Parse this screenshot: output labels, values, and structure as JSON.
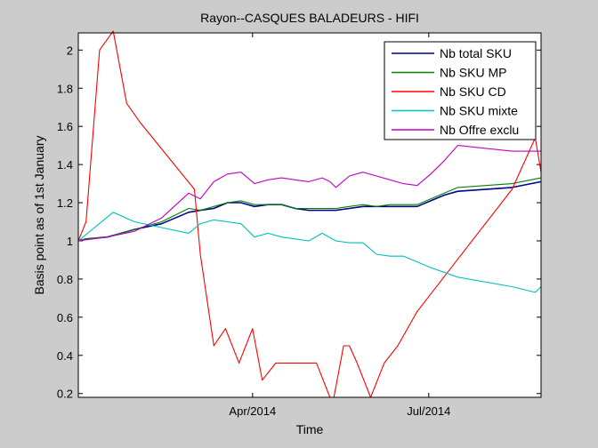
{
  "chart_data": {
    "type": "line",
    "title": "Rayon--CASQUES BALADEURS - HIFI",
    "xlabel": "Time",
    "ylabel": "Basis point as of 1st January",
    "ylim": [
      0.18,
      2.09
    ],
    "xlim": [
      "2014-01-01",
      "2014-08-28"
    ],
    "grid": false,
    "legend_position": "top-right",
    "yticks": [
      0.2,
      0.4,
      0.6,
      0.8,
      1,
      1.2,
      1.4,
      1.6,
      1.8,
      2
    ],
    "ytick_labels": [
      "0.2",
      "0.4",
      "0.6",
      "0.8",
      "1",
      "1.2",
      "1.4",
      "1.6",
      "1.8",
      "2"
    ],
    "xticks": [
      {
        "label": "Apr/2014",
        "x": "2014-04-01"
      },
      {
        "label": "Jul/2014",
        "x": "2014-07-01"
      }
    ],
    "series": [
      {
        "name": "Nb total SKU",
        "color": "#00008b",
        "x": [
          "2014-01-01",
          "2014-01-05",
          "2014-01-16",
          "2014-01-30",
          "2014-02-13",
          "2014-02-27",
          "2014-03-05",
          "2014-03-12",
          "2014-03-19",
          "2014-03-26",
          "2014-04-02",
          "2014-04-09",
          "2014-04-16",
          "2014-04-23",
          "2014-04-30",
          "2014-05-07",
          "2014-05-14",
          "2014-05-21",
          "2014-05-28",
          "2014-06-04",
          "2014-06-11",
          "2014-06-18",
          "2014-06-25",
          "2014-07-02",
          "2014-07-09",
          "2014-07-16",
          "2014-08-13",
          "2014-08-28"
        ],
        "y": [
          1.0,
          1.01,
          1.02,
          1.06,
          1.09,
          1.15,
          1.16,
          1.17,
          1.2,
          1.2,
          1.18,
          1.19,
          1.19,
          1.17,
          1.16,
          1.16,
          1.16,
          1.17,
          1.18,
          1.18,
          1.18,
          1.18,
          1.18,
          1.21,
          1.24,
          1.26,
          1.28,
          1.31
        ]
      },
      {
        "name": "Nb SKU MP",
        "color": "#008000",
        "x": [
          "2014-01-01",
          "2014-01-05",
          "2014-01-16",
          "2014-01-30",
          "2014-02-13",
          "2014-02-27",
          "2014-03-05",
          "2014-03-12",
          "2014-03-19",
          "2014-03-26",
          "2014-04-02",
          "2014-04-09",
          "2014-04-16",
          "2014-04-23",
          "2014-04-30",
          "2014-05-07",
          "2014-05-14",
          "2014-05-21",
          "2014-05-28",
          "2014-06-04",
          "2014-06-11",
          "2014-06-18",
          "2014-06-25",
          "2014-07-02",
          "2014-07-09",
          "2014-07-16",
          "2014-08-13",
          "2014-08-28"
        ],
        "y": [
          1.0,
          1.01,
          1.02,
          1.06,
          1.1,
          1.17,
          1.16,
          1.18,
          1.2,
          1.21,
          1.19,
          1.19,
          1.19,
          1.17,
          1.17,
          1.17,
          1.17,
          1.18,
          1.19,
          1.18,
          1.19,
          1.19,
          1.19,
          1.22,
          1.25,
          1.28,
          1.3,
          1.33
        ]
      },
      {
        "name": "Nb SKU CD",
        "color": "#ff0000",
        "x": [
          "2014-01-01",
          "2014-01-05",
          "2014-01-12",
          "2014-01-19",
          "2014-01-26",
          "2014-02-02",
          "2014-03-02",
          "2014-03-05",
          "2014-03-12",
          "2014-03-18",
          "2014-03-25",
          "2014-04-01",
          "2014-04-06",
          "2014-04-13",
          "2014-04-20",
          "2014-04-27",
          "2014-05-04",
          "2014-05-11",
          "2014-05-13",
          "2014-05-18",
          "2014-05-21",
          "2014-05-25",
          "2014-06-01",
          "2014-06-08",
          "2014-06-15",
          "2014-06-25",
          "2014-08-13",
          "2014-08-25",
          "2014-08-28"
        ],
        "y": [
          1.0,
          1.1,
          2.0,
          2.1,
          1.72,
          1.62,
          1.27,
          0.93,
          0.45,
          0.54,
          0.36,
          0.54,
          0.27,
          0.36,
          0.36,
          0.36,
          0.36,
          0.18,
          0.18,
          0.45,
          0.45,
          0.36,
          0.18,
          0.36,
          0.45,
          0.63,
          1.27,
          1.54,
          1.36
        ]
      },
      {
        "name": "Nb SKU mixte",
        "color": "#00bfbf",
        "x": [
          "2014-01-01",
          "2014-01-19",
          "2014-01-30",
          "2014-02-13",
          "2014-02-27",
          "2014-03-05",
          "2014-03-12",
          "2014-03-19",
          "2014-03-26",
          "2014-04-02",
          "2014-04-09",
          "2014-04-16",
          "2014-04-23",
          "2014-04-30",
          "2014-05-07",
          "2014-05-14",
          "2014-05-21",
          "2014-05-28",
          "2014-06-04",
          "2014-06-11",
          "2014-06-18",
          "2014-07-02",
          "2014-07-16",
          "2014-08-13",
          "2014-08-25",
          "2014-08-28"
        ],
        "y": [
          1.0,
          1.15,
          1.1,
          1.07,
          1.04,
          1.09,
          1.11,
          1.1,
          1.09,
          1.02,
          1.04,
          1.02,
          1.01,
          1.0,
          1.04,
          1.0,
          0.99,
          0.99,
          0.93,
          0.92,
          0.92,
          0.86,
          0.81,
          0.76,
          0.73,
          0.76
        ]
      },
      {
        "name": "Nb Offre exclu",
        "color": "#bf00bf",
        "x": [
          "2014-01-01",
          "2014-01-16",
          "2014-01-30",
          "2014-02-13",
          "2014-02-27",
          "2014-03-05",
          "2014-03-12",
          "2014-03-19",
          "2014-03-26",
          "2014-04-02",
          "2014-04-09",
          "2014-04-16",
          "2014-04-23",
          "2014-04-30",
          "2014-05-07",
          "2014-05-11",
          "2014-05-14",
          "2014-05-21",
          "2014-05-28",
          "2014-06-04",
          "2014-06-11",
          "2014-06-18",
          "2014-06-25",
          "2014-07-02",
          "2014-07-09",
          "2014-07-16",
          "2014-08-13",
          "2014-08-28"
        ],
        "y": [
          1.0,
          1.02,
          1.05,
          1.12,
          1.25,
          1.22,
          1.31,
          1.35,
          1.36,
          1.3,
          1.32,
          1.33,
          1.32,
          1.31,
          1.33,
          1.31,
          1.28,
          1.34,
          1.36,
          1.34,
          1.32,
          1.3,
          1.29,
          1.35,
          1.42,
          1.5,
          1.47,
          1.47
        ]
      }
    ]
  }
}
